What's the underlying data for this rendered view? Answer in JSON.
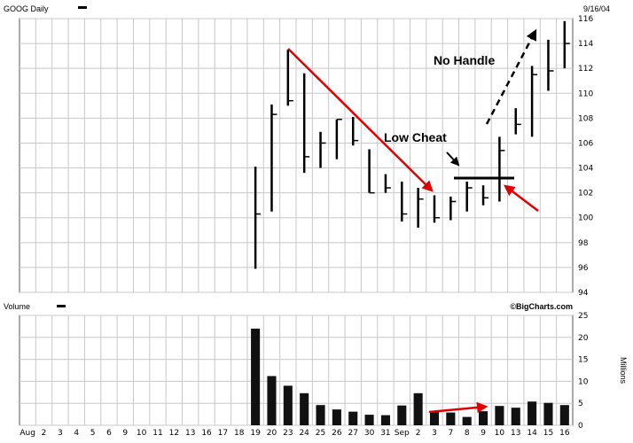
{
  "chart_data": [
    {
      "type": "ohlc",
      "title": "GOOG Daily",
      "date_label": "9/16/04",
      "ylim": [
        94,
        116
      ],
      "y_ticks": [
        "94",
        "96",
        "98",
        "100",
        "102",
        "104",
        "106",
        "108",
        "110",
        "112",
        "114",
        "116"
      ],
      "grid": true,
      "bars": [
        {
          "date": "Aug 19",
          "high": 104.1,
          "low": 95.9,
          "close": 100.3
        },
        {
          "date": "Aug 20",
          "high": 109.1,
          "low": 100.5,
          "close": 108.3
        },
        {
          "date": "Aug 23",
          "high": 113.5,
          "low": 109.0,
          "close": 109.4
        },
        {
          "date": "Aug 24",
          "high": 111.6,
          "low": 103.6,
          "close": 104.9
        },
        {
          "date": "Aug 25",
          "high": 106.9,
          "low": 104.0,
          "close": 106.0
        },
        {
          "date": "Aug 26",
          "high": 107.9,
          "low": 104.7,
          "close": 107.9
        },
        {
          "date": "Aug 27",
          "high": 108.1,
          "low": 105.8,
          "close": 106.2
        },
        {
          "date": "Aug 30",
          "high": 105.5,
          "low": 102.0,
          "close": 102.0
        },
        {
          "date": "Aug 31",
          "high": 103.5,
          "low": 102.0,
          "close": 102.4
        },
        {
          "date": "Sep 1",
          "high": 102.9,
          "low": 99.7,
          "close": 100.3
        },
        {
          "date": "Sep 2",
          "high": 102.4,
          "low": 99.2,
          "close": 101.5
        },
        {
          "date": "Sep 3",
          "high": 101.8,
          "low": 99.6,
          "close": 100.0
        },
        {
          "date": "Sep 7",
          "high": 101.7,
          "low": 99.8,
          "close": 101.3
        },
        {
          "date": "Sep 8",
          "high": 102.9,
          "low": 100.5,
          "close": 102.4
        },
        {
          "date": "Sep 9",
          "high": 102.6,
          "low": 101.0,
          "close": 101.6
        },
        {
          "date": "Sep 10",
          "high": 106.5,
          "low": 101.3,
          "close": 105.4
        },
        {
          "date": "Sep 13",
          "high": 108.8,
          "low": 106.7,
          "close": 107.5
        },
        {
          "date": "Sep 14",
          "high": 112.2,
          "low": 106.5,
          "close": 111.5
        },
        {
          "date": "Sep 15",
          "high": 114.3,
          "low": 110.2,
          "close": 111.8
        },
        {
          "date": "Sep 16",
          "high": 115.8,
          "low": 112.0,
          "close": 114.0
        }
      ],
      "annotations": [
        {
          "text": "No Handle"
        },
        {
          "text": "Low Cheat"
        }
      ]
    },
    {
      "type": "bar",
      "title": "Volume",
      "source": "©BigCharts.com",
      "ylabel": "Millions",
      "ylim": [
        0,
        25
      ],
      "y_ticks": [
        "0",
        "5",
        "10",
        "15",
        "20",
        "25"
      ],
      "x_tick_labels": [
        "Aug",
        "2",
        "3",
        "4",
        "5",
        "6",
        "9",
        "10",
        "11",
        "12",
        "13",
        "16",
        "17",
        "18",
        "19",
        "20",
        "23",
        "24",
        "25",
        "26",
        "27",
        "30",
        "31",
        "Sep",
        "2",
        "3",
        "7",
        "8",
        "9",
        "10",
        "13",
        "14",
        "15",
        "16"
      ],
      "categories": [
        "Aug 19",
        "Aug 20",
        "Aug 23",
        "Aug 24",
        "Aug 25",
        "Aug 26",
        "Aug 27",
        "Aug 30",
        "Aug 31",
        "Sep 1",
        "Sep 2",
        "Sep 3",
        "Sep 7",
        "Sep 8",
        "Sep 9",
        "Sep 10",
        "Sep 13",
        "Sep 14",
        "Sep 15",
        "Sep 16"
      ],
      "values": [
        22.0,
        11.2,
        9.0,
        7.3,
        4.6,
        3.6,
        3.1,
        2.4,
        2.3,
        4.5,
        7.3,
        3.0,
        2.9,
        1.9,
        3.2,
        4.4,
        4.0,
        5.4,
        5.1,
        4.6
      ]
    }
  ]
}
